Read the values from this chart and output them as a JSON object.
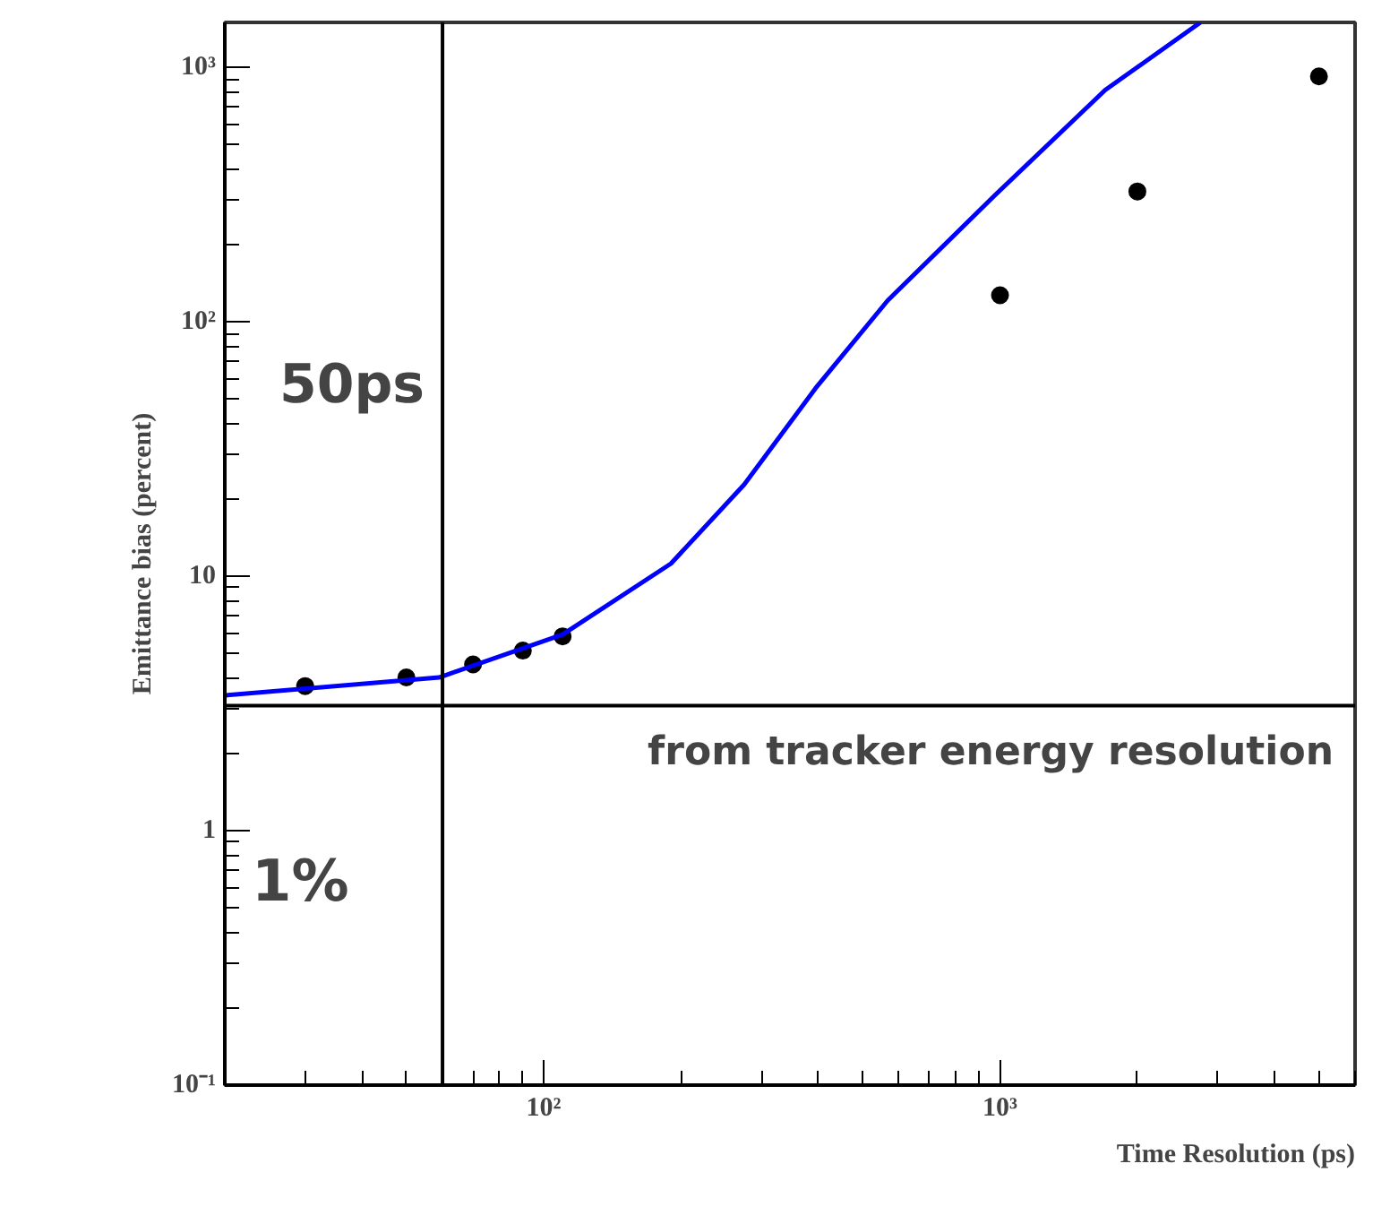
{
  "chart_data": {
    "type": "scatter",
    "xlabel": "Time Resolution (ps)",
    "ylabel": "Emittance bias (percent)",
    "log": "xy",
    "xlim": [
      20,
      6000
    ],
    "ylim": [
      0.1,
      1500
    ],
    "xticks": [
      {
        "value": 100,
        "label": "10²"
      },
      {
        "value": 1000,
        "label": "10³"
      }
    ],
    "yticks": [
      {
        "value": 0.1,
        "label": "10⁻¹"
      },
      1,
      10,
      {
        "value": 100,
        "label": "10²"
      },
      {
        "value": 1000,
        "label": "10³"
      }
    ],
    "grid": false,
    "series": [
      {
        "marker": "circle",
        "color": "#000000",
        "x": [
          30,
          50,
          70,
          90,
          110,
          1000,
          2000,
          5000
        ],
        "values": [
          3.7,
          4.0,
          4.5,
          5.1,
          5.8,
          127,
          325,
          920
        ]
      },
      {
        "type": "line",
        "marker": "none",
        "color": "#0000ff",
        "x": [
          20,
          59,
          110,
          190,
          275,
          394,
          567,
          973,
          1700,
          2750
        ],
        "values": [
          3.4,
          4.0,
          5.9,
          11.2,
          22.9,
          54.7,
          121,
          313,
          813,
          1500
        ]
      }
    ],
    "ref_lines": [
      {
        "axis": "y",
        "value": 3.1,
        "label": "from tracker energy resolution"
      },
      {
        "axis": "x",
        "value": 60,
        "label": "50ps"
      }
    ],
    "annotations": [
      "1%"
    ]
  }
}
